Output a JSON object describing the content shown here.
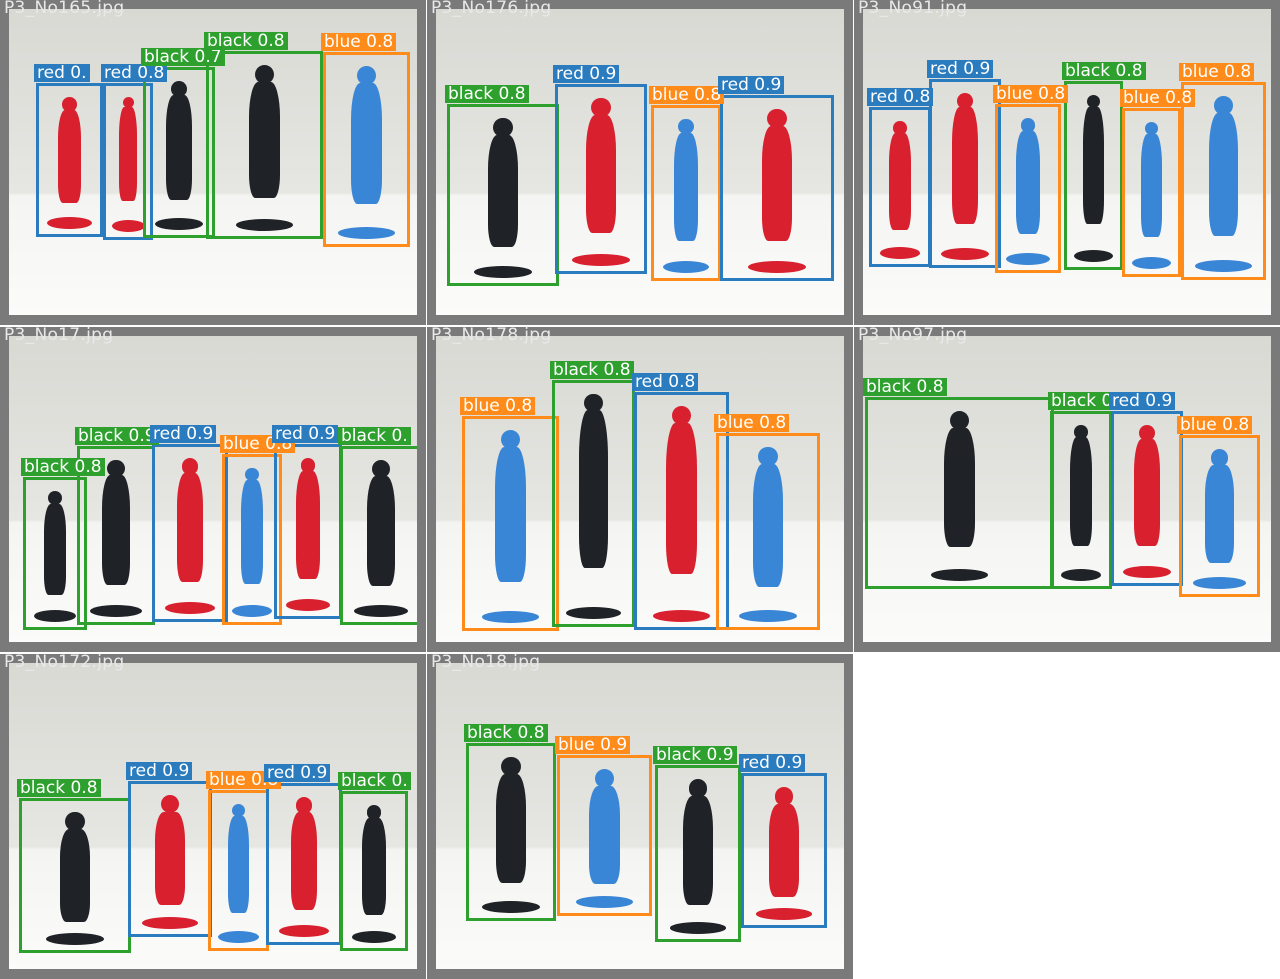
{
  "tiles": [
    {
      "name": "P3_No165.jpg",
      "detections": [
        {
          "cls": "red",
          "label": "red 0.",
          "col": "red"
        },
        {
          "cls": "red",
          "label": "red 0.8",
          "col": "red"
        },
        {
          "cls": "black",
          "label": "black 0.7",
          "col": "black"
        },
        {
          "cls": "black",
          "label": "black 0.8",
          "col": "black"
        },
        {
          "cls": "blue",
          "label": "blue 0.8",
          "col": "blue"
        }
      ]
    },
    {
      "name": "P3_No176.jpg",
      "detections": [
        {
          "cls": "black",
          "label": "black 0.8",
          "col": "black"
        },
        {
          "cls": "red",
          "label": "red 0.9",
          "col": "red"
        },
        {
          "cls": "blue",
          "label": "blue 0.8",
          "col": "blue"
        },
        {
          "cls": "red",
          "label": "red 0.9",
          "col": "red"
        }
      ]
    },
    {
      "name": "P3_No91.jpg",
      "detections": [
        {
          "cls": "red",
          "label": "red 0.8",
          "col": "red"
        },
        {
          "cls": "red",
          "label": "red 0.9",
          "col": "red"
        },
        {
          "cls": "blue",
          "label": "blue 0.8",
          "col": "blue"
        },
        {
          "cls": "black",
          "label": "black 0.8",
          "col": "black"
        },
        {
          "cls": "blue",
          "label": "blue 0.8",
          "col": "blue"
        },
        {
          "cls": "blue",
          "label": "blue 0.8",
          "col": "blue"
        }
      ]
    },
    {
      "name": "P3_No17.jpg",
      "detections": [
        {
          "cls": "black",
          "label": "black 0.8",
          "col": "black"
        },
        {
          "cls": "black",
          "label": "black 0.9",
          "col": "black"
        },
        {
          "cls": "red",
          "label": "red 0.9",
          "col": "red"
        },
        {
          "cls": "blue",
          "label": "blue 0.8",
          "col": "blue"
        },
        {
          "cls": "red",
          "label": "red 0.9",
          "col": "red"
        },
        {
          "cls": "black",
          "label": "black 0.",
          "col": "black"
        }
      ]
    },
    {
      "name": "P3_No178.jpg",
      "detections": [
        {
          "cls": "blue",
          "label": "blue 0.8",
          "col": "blue"
        },
        {
          "cls": "black",
          "label": "black 0.8",
          "col": "black"
        },
        {
          "cls": "red",
          "label": "red 0.8",
          "col": "red"
        },
        {
          "cls": "blue",
          "label": "blue 0.8",
          "col": "blue"
        }
      ]
    },
    {
      "name": "P3_No97.jpg",
      "detections": [
        {
          "cls": "black",
          "label": "black 0.8",
          "col": "black"
        },
        {
          "cls": "black",
          "label": "black 0.8",
          "col": "black"
        },
        {
          "cls": "red",
          "label": "red 0.9",
          "col": "red"
        },
        {
          "cls": "blue",
          "label": "blue 0.8",
          "col": "blue"
        }
      ]
    },
    {
      "name": "P3_No172.jpg",
      "detections": [
        {
          "cls": "black",
          "label": "black 0.8",
          "col": "black"
        },
        {
          "cls": "red",
          "label": "red 0.9",
          "col": "red"
        },
        {
          "cls": "blue",
          "label": "blue 0.8",
          "col": "blue"
        },
        {
          "cls": "red",
          "label": "red 0.9",
          "col": "red"
        },
        {
          "cls": "black",
          "label": "black 0.",
          "col": "black"
        }
      ]
    },
    {
      "name": "P3_No18.jpg",
      "detections": [
        {
          "cls": "black",
          "label": "black 0.8",
          "col": "black"
        },
        {
          "cls": "blue",
          "label": "blue 0.9",
          "col": "blue"
        },
        {
          "cls": "black",
          "label": "black 0.9",
          "col": "black"
        },
        {
          "cls": "red",
          "label": "red 0.9",
          "col": "red"
        }
      ]
    }
  ],
  "colors": {
    "box_black": "#2ea02e",
    "box_red": "#2b7bbf",
    "box_blue": "#ff8c1a",
    "figure_black": "#1f2226",
    "figure_red": "#d8202f",
    "figure_blue": "#3a86d6"
  }
}
